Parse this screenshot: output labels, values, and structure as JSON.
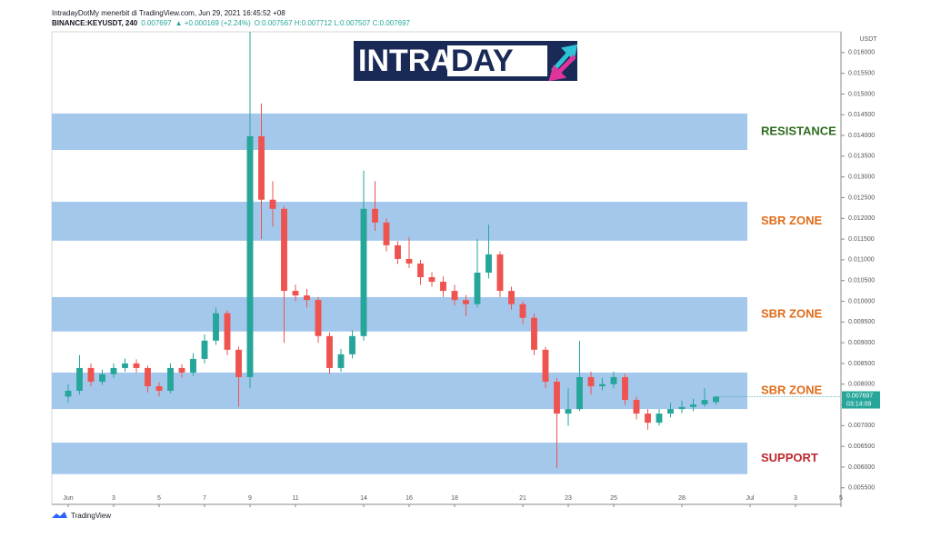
{
  "chart_data": {
    "type": "candlestick",
    "header": "IntradayDotMy menerbit di TradingView.com, Jun 29, 2021 16:45:52 +08",
    "symbol": "BINANCE:KEYUSDT, 240",
    "last": "0.007697",
    "change": "▲ +0.000169 (+2.24%)",
    "ohlc_text": "O:0.007567 H:0.007712 L:0.007507 C:0.007697",
    "logo_left": "INTRA",
    "logo_right": "DAY",
    "currency": "USDT",
    "price_tag": "0.007697",
    "countdown": "03:14:09",
    "footer": "TradingView",
    "up_color": "#26a69a",
    "down_color": "#ef5350",
    "x": [
      1,
      1.5,
      2,
      2.5,
      3,
      3.5,
      4,
      4.5,
      5,
      5.5,
      6,
      6.5,
      7,
      7.5,
      8,
      8.5,
      9,
      9.5,
      10,
      10.5,
      11,
      11.5,
      12,
      12.5,
      13,
      13.5,
      14,
      14.5,
      15,
      15.5,
      16,
      16.5,
      17,
      17.5,
      18,
      18.5,
      19,
      19.5,
      20,
      20.5,
      21,
      21.5,
      22,
      22.5,
      23,
      23.5,
      24,
      24.5,
      25,
      25.5,
      26,
      26.5,
      27,
      27.5,
      28,
      28.5,
      29,
      29.5
    ],
    "open": [
      0.0077,
      0.00784,
      0.00839,
      0.00806,
      0.00824,
      0.00839,
      0.0085,
      0.00839,
      0.00795,
      0.00784,
      0.00839,
      0.00828,
      0.00861,
      0.00905,
      0.00971,
      0.00883,
      0.00817,
      0.01398,
      0.01245,
      0.01223,
      0.01025,
      0.01014,
      0.01003,
      0.00916,
      0.00839,
      0.00872,
      0.00916,
      0.01223,
      0.0119,
      0.01135,
      0.01102,
      0.01091,
      0.01058,
      0.01047,
      0.01025,
      0.01003,
      0.00993,
      0.01069,
      0.01113,
      0.01025,
      0.00993,
      0.0096,
      0.00883,
      0.00806,
      0.00729,
      0.0074,
      0.00817,
      0.00795,
      0.008,
      0.00817,
      0.00762,
      0.00729,
      0.00707,
      0.00729,
      0.0074,
      0.00745,
      0.00751,
      0.007567
    ],
    "high": [
      0.008,
      0.0087,
      0.0085,
      0.00835,
      0.0085,
      0.00862,
      0.0086,
      0.00845,
      0.00805,
      0.0085,
      0.00848,
      0.00875,
      0.0092,
      0.00985,
      0.00978,
      0.0089,
      0.0165,
      0.01477,
      0.0129,
      0.0123,
      0.0104,
      0.0103,
      0.0101,
      0.00925,
      0.00885,
      0.0093,
      0.01315,
      0.0129,
      0.012,
      0.01145,
      0.01155,
      0.011,
      0.0107,
      0.0106,
      0.0104,
      0.01015,
      0.0115,
      0.01185,
      0.0112,
      0.01035,
      0.01,
      0.0097,
      0.0089,
      0.00815,
      0.0079,
      0.00905,
      0.0083,
      0.00815,
      0.0083,
      0.00825,
      0.0077,
      0.0074,
      0.0074,
      0.00755,
      0.0076,
      0.00765,
      0.0079,
      0.007712
    ],
    "low": [
      0.00755,
      0.00775,
      0.00795,
      0.00798,
      0.00815,
      0.0083,
      0.00828,
      0.0078,
      0.0077,
      0.00778,
      0.00815,
      0.0082,
      0.0085,
      0.00895,
      0.0087,
      0.00745,
      0.0079,
      0.0115,
      0.0118,
      0.009,
      0.01,
      0.00985,
      0.009,
      0.00825,
      0.0083,
      0.00862,
      0.00905,
      0.0117,
      0.0112,
      0.0109,
      0.0108,
      0.0104,
      0.01035,
      0.0101,
      0.0099,
      0.00965,
      0.00985,
      0.01055,
      0.0101,
      0.0098,
      0.00945,
      0.0087,
      0.0079,
      0.00598,
      0.007,
      0.00735,
      0.00775,
      0.00785,
      0.0079,
      0.0075,
      0.00715,
      0.0069,
      0.007,
      0.0072,
      0.0073,
      0.00735,
      0.00745,
      0.007507
    ],
    "close": [
      0.00784,
      0.00839,
      0.00806,
      0.00824,
      0.00839,
      0.0085,
      0.00839,
      0.00795,
      0.00784,
      0.00839,
      0.00828,
      0.00861,
      0.00905,
      0.00971,
      0.00883,
      0.00817,
      0.01398,
      0.01245,
      0.01223,
      0.01025,
      0.01014,
      0.01003,
      0.00916,
      0.00839,
      0.00872,
      0.00916,
      0.01223,
      0.0119,
      0.01135,
      0.01102,
      0.01091,
      0.01058,
      0.01047,
      0.01025,
      0.01003,
      0.00993,
      0.01069,
      0.01113,
      0.01025,
      0.00993,
      0.0096,
      0.00883,
      0.00806,
      0.00729,
      0.0074,
      0.00817,
      0.00795,
      0.008,
      0.00817,
      0.00762,
      0.00729,
      0.00707,
      0.00729,
      0.0074,
      0.00745,
      0.00751,
      0.00762,
      0.007697
    ],
    "xlim": [
      0.28,
      35
    ],
    "xticks": [
      {
        "value": 1,
        "label": "Jun"
      },
      3,
      5,
      7,
      9,
      11,
      14,
      16,
      18,
      21,
      23,
      25,
      28,
      {
        "value": 31,
        "label": "Jul"
      },
      {
        "value": 33,
        "label": "3"
      },
      {
        "value": 35,
        "label": "5"
      }
    ],
    "ylim": [
      0.0051,
      0.0165
    ],
    "yticks": [
      {
        "value": 0.0055,
        "label": "0.005500"
      },
      {
        "value": 0.006,
        "label": "0.006000"
      },
      {
        "value": 0.0065,
        "label": "0.006500"
      },
      {
        "value": 0.007,
        "label": "0.007000"
      },
      {
        "value": 0.0075,
        "label": "0.007500"
      },
      {
        "value": 0.008,
        "label": "0.008000"
      },
      {
        "value": 0.0085,
        "label": "0.008500"
      },
      {
        "value": 0.009,
        "label": "0.009000"
      },
      {
        "value": 0.0095,
        "label": "0.009500"
      },
      {
        "value": 0.01,
        "label": "0.010000"
      },
      {
        "value": 0.0105,
        "label": "0.010500"
      },
      {
        "value": 0.011,
        "label": "0.011000"
      },
      {
        "value": 0.0115,
        "label": "0.011500"
      },
      {
        "value": 0.012,
        "label": "0.012000"
      },
      {
        "value": 0.0125,
        "label": "0.012500"
      },
      {
        "value": 0.013,
        "label": "0.013000"
      },
      {
        "value": 0.0135,
        "label": "0.013500"
      },
      {
        "value": 0.014,
        "label": "0.014000"
      },
      {
        "value": 0.0145,
        "label": "0.014500"
      },
      {
        "value": 0.015,
        "label": "0.015000"
      },
      {
        "value": 0.0155,
        "label": "0.015500"
      },
      {
        "value": 0.016,
        "label": "0.016000"
      }
    ],
    "zone_color": "#a4c8ec",
    "zones": [
      {
        "label": "RESISTANCE",
        "from": 0.01365,
        "to": 0.01453,
        "color": "#2e6b1f"
      },
      {
        "label": "SBR ZONE",
        "from": 0.01146,
        "to": 0.0124,
        "color": "#e06c1a"
      },
      {
        "label": "SBR ZONE",
        "from": 0.00927,
        "to": 0.0101,
        "color": "#e06c1a"
      },
      {
        "label": "SBR ZONE",
        "from": 0.0074,
        "to": 0.00828,
        "color": "#e06c1a"
      },
      {
        "label": "SUPPORT",
        "from": 0.00583,
        "to": 0.00659,
        "color": "#c0272d"
      }
    ]
  }
}
